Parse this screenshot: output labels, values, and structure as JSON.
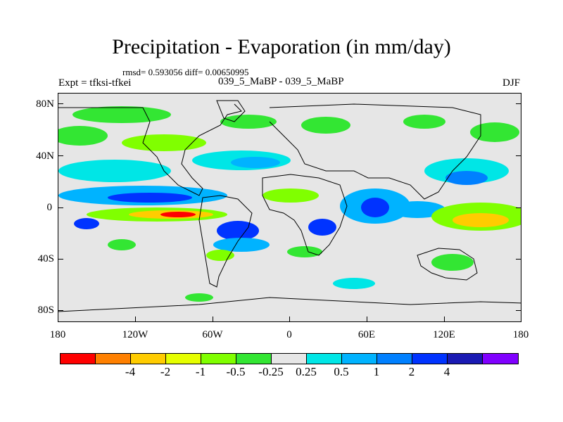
{
  "title": "Precipitation - Evaporation (in mm/day)",
  "stats": "rmsd= 0.593056 diff= 0.00650995",
  "experiment": "Expt = tfksi-tfkei",
  "comparison": "039_5_MaBP - 039_5_MaBP",
  "season": "DJF",
  "y_axis_labels": [
    "80N",
    "40N",
    "0",
    "40S",
    "80S"
  ],
  "x_axis_labels": [
    "180",
    "120W",
    "60W",
    "0",
    "60E",
    "120E",
    "180"
  ],
  "colorbar": {
    "colors": [
      "#ff0000",
      "#ff8000",
      "#ffcc00",
      "#e6ff00",
      "#80ff00",
      "#33e633",
      "#e6e6e6",
      "#00e6e6",
      "#00b3ff",
      "#0080ff",
      "#0033ff",
      "#1a1ab3",
      "#8000ff"
    ],
    "labels": [
      "-4",
      "-2",
      "-1",
      "-0.5",
      "-0.25",
      "0.25",
      "0.5",
      "1",
      "2",
      "4"
    ]
  },
  "colors": {
    "land_background": "#e6e6e6",
    "coastline": "#000000"
  }
}
